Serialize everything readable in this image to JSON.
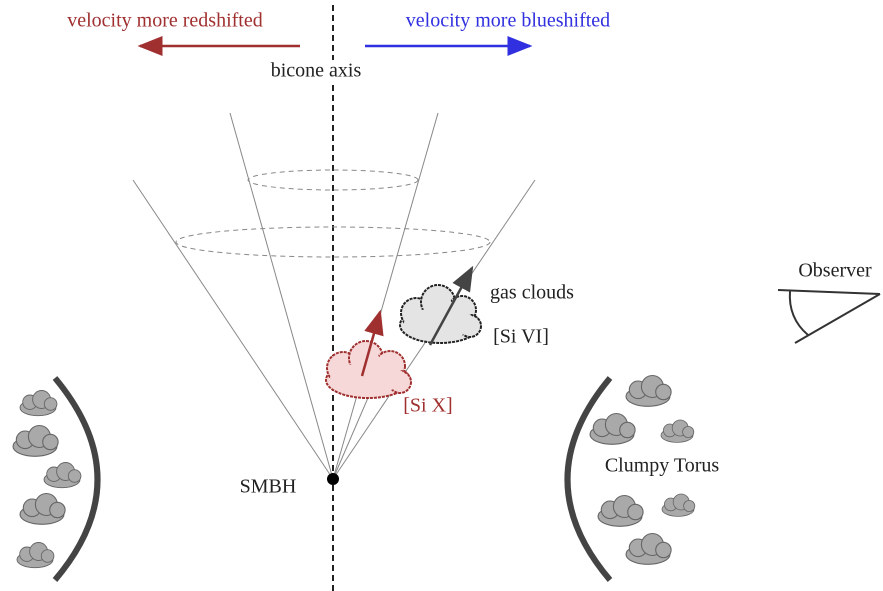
{
  "labels": {
    "redshift": "velocity more redshifted",
    "blueshift": "velocity more blueshifted",
    "axis": "bicone axis",
    "gas_clouds": "gas clouds",
    "si_vi": "[Si VI]",
    "si_x": "[Si X]",
    "observer": "Observer",
    "smbh": "SMBH",
    "torus": "Clumpy Torus"
  }
}
